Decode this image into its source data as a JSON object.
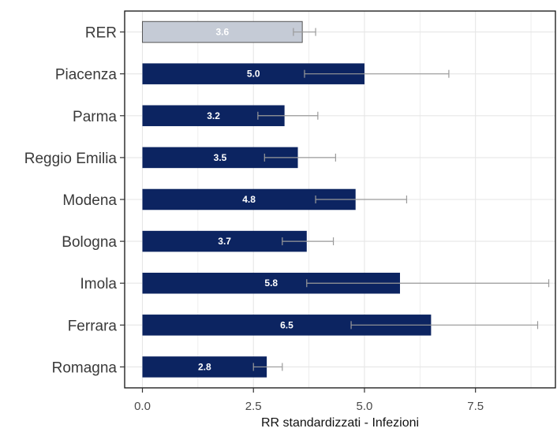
{
  "chart_data": {
    "type": "bar",
    "orientation": "horizontal",
    "categories": [
      "RER",
      "Piacenza",
      "Parma",
      "Reggio Emilia",
      "Modena",
      "Bologna",
      "Imola",
      "Ferrara",
      "Romagna"
    ],
    "values": [
      3.6,
      5.0,
      3.2,
      3.5,
      4.8,
      3.7,
      5.8,
      6.5,
      2.8
    ],
    "data_labels": [
      "3.6",
      "5.0",
      "3.2",
      "3.5",
      "4.8",
      "3.7",
      "5.8",
      "6.5",
      "2.8"
    ],
    "error_low": [
      3.4,
      3.65,
      2.6,
      2.75,
      3.9,
      3.15,
      3.7,
      4.7,
      2.5
    ],
    "error_high": [
      3.9,
      6.9,
      3.95,
      4.35,
      5.95,
      4.3,
      9.15,
      8.9,
      3.15
    ],
    "bar_colors": [
      "#c5cbd6",
      "#0c2461",
      "#0c2461",
      "#0c2461",
      "#0c2461",
      "#0c2461",
      "#0c2461",
      "#0c2461",
      "#0c2461"
    ],
    "xlabel": "RR standardizzati - Infezioni",
    "ylabel": "",
    "xlim": [
      -0.4,
      9.3
    ],
    "x_ticks": [
      0,
      2.5,
      5,
      7.5
    ],
    "x_tick_labels": [
      "0.0",
      "2.5",
      "5.0",
      "7.5"
    ],
    "grid": true,
    "error_bar_color": "#9a9a9a",
    "grid_color": "#e6e6e6"
  }
}
